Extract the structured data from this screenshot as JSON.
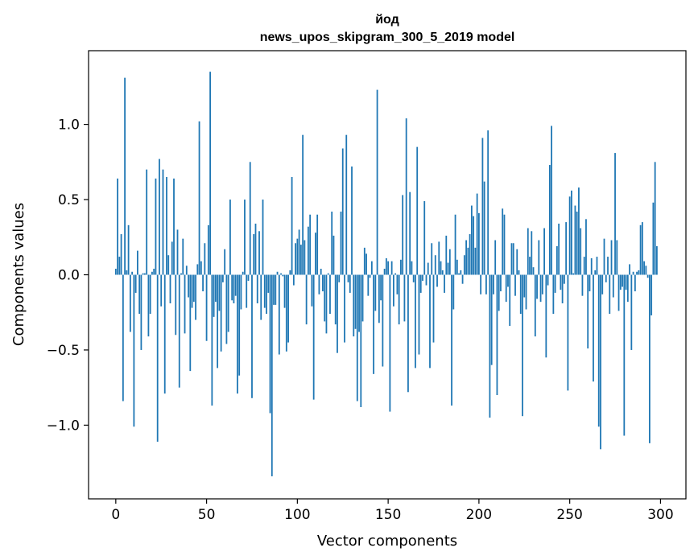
{
  "chart_data": {
    "type": "bar",
    "title": "йод",
    "subtitle": "news_upos_skipgram_300_5_2019 model",
    "xlabel": "Vector components",
    "ylabel": "Components values",
    "xlim": [
      -15,
      314
    ],
    "ylim": [
      -1.49,
      1.49
    ],
    "xticks": [
      0,
      50,
      100,
      150,
      200,
      250,
      300
    ],
    "xtick_labels": [
      "0",
      "50",
      "100",
      "150",
      "200",
      "250",
      "300"
    ],
    "yticks": [
      -1.0,
      -0.5,
      0.0,
      0.5,
      1.0
    ],
    "ytick_labels": [
      "−1.0",
      "−0.5",
      "0.0",
      "0.5",
      "1.0"
    ],
    "grid": false,
    "bar_color": "#1f77b4",
    "values": [
      0.04,
      0.64,
      0.12,
      0.27,
      -0.84,
      1.31,
      0.03,
      0.33,
      -0.38,
      0.02,
      -1.01,
      -0.12,
      0.16,
      -0.26,
      -0.5,
      0.01,
      0.01,
      0.7,
      -0.41,
      -0.26,
      0.02,
      0.04,
      0.64,
      -1.11,
      0.77,
      -0.21,
      0.7,
      -0.79,
      0.65,
      0.13,
      -0.19,
      0.22,
      0.64,
      -0.4,
      0.3,
      -0.75,
      0.01,
      0.24,
      -0.39,
      0.06,
      -0.15,
      -0.64,
      -0.22,
      -0.18,
      -0.3,
      0.07,
      1.02,
      0.09,
      -0.11,
      0.21,
      -0.44,
      0.33,
      1.35,
      -0.87,
      -0.28,
      -0.18,
      -0.62,
      -0.24,
      -0.51,
      -0.05,
      0.17,
      -0.46,
      -0.38,
      0.5,
      -0.17,
      -0.19,
      -0.14,
      -0.79,
      -0.67,
      -0.23,
      0.02,
      0.5,
      -0.22,
      -0.04,
      0.75,
      -0.82,
      0.27,
      0.34,
      -0.19,
      0.29,
      -0.3,
      0.5,
      -0.22,
      -0.26,
      -0.12,
      -0.92,
      -1.34,
      -0.2,
      -0.2,
      0.02,
      -0.53,
      0.01,
      -0.01,
      -0.22,
      -0.51,
      -0.45,
      0.03,
      0.65,
      -0.07,
      0.21,
      0.24,
      0.3,
      0.2,
      0.93,
      0.23,
      -0.33,
      0.32,
      0.4,
      -0.21,
      -0.83,
      0.28,
      0.4,
      -0.13,
      0.04,
      -0.11,
      -0.31,
      -0.39,
      0.01,
      -0.26,
      0.42,
      0.26,
      -0.33,
      -0.52,
      -0.05,
      0.42,
      0.84,
      -0.45,
      0.93,
      -0.05,
      -0.12,
      0.72,
      -0.41,
      -0.36,
      -0.84,
      -0.38,
      -0.88,
      -0.31,
      0.18,
      0.14,
      -0.14,
      -0.02,
      0.09,
      -0.66,
      -0.24,
      1.23,
      -0.32,
      -0.17,
      -0.61,
      0.04,
      0.11,
      0.09,
      -0.91,
      0.09,
      -0.21,
      0.01,
      -0.13,
      -0.33,
      0.1,
      0.53,
      -0.31,
      1.04,
      -0.78,
      0.55,
      0.09,
      -0.05,
      -0.62,
      0.85,
      -0.53,
      -0.12,
      -0.04,
      0.49,
      -0.07,
      0.08,
      -0.62,
      0.21,
      -0.45,
      0.13,
      -0.08,
      0.22,
      0.09,
      0.03,
      -0.12,
      0.26,
      0.08,
      0.17,
      -0.87,
      -0.23,
      0.4,
      0.1,
      0.01,
      0.03,
      -0.06,
      0.13,
      0.23,
      0.18,
      0.27,
      0.46,
      0.39,
      0.18,
      0.54,
      0.41,
      -0.13,
      0.91,
      0.62,
      -0.13,
      0.96,
      -0.95,
      -0.6,
      -0.13,
      0.23,
      -0.8,
      -0.24,
      -0.11,
      0.44,
      0.4,
      -0.18,
      -0.08,
      -0.34,
      0.21,
      0.21,
      -0.14,
      0.17,
      0.03,
      -0.26,
      -0.94,
      -0.15,
      -0.23,
      0.31,
      0.12,
      0.29,
      0.05,
      -0.41,
      -0.16,
      0.23,
      -0.18,
      -0.13,
      0.31,
      -0.55,
      -0.07,
      0.73,
      0.99,
      -0.26,
      -0.12,
      0.19,
      0.34,
      -0.1,
      -0.19,
      -0.06,
      0.35,
      -0.77,
      0.52,
      0.56,
      0.01,
      0.46,
      0.42,
      0.58,
      0.31,
      -0.14,
      0.12,
      0.37,
      -0.49,
      -0.11,
      0.11,
      -0.71,
      0.03,
      0.12,
      -1.01,
      -1.16,
      -0.13,
      0.24,
      -0.05,
      0.12,
      -0.26,
      0.23,
      -0.15,
      0.81,
      0.23,
      -0.24,
      -0.1,
      -0.08,
      -1.07,
      -0.1,
      -0.18,
      0.07,
      -0.5,
      0.02,
      -0.11,
      0.02,
      0.03,
      0.33,
      0.35,
      0.09,
      0.06,
      -0.02,
      -1.12,
      -0.27,
      0.48,
      0.75,
      0.19
    ]
  }
}
